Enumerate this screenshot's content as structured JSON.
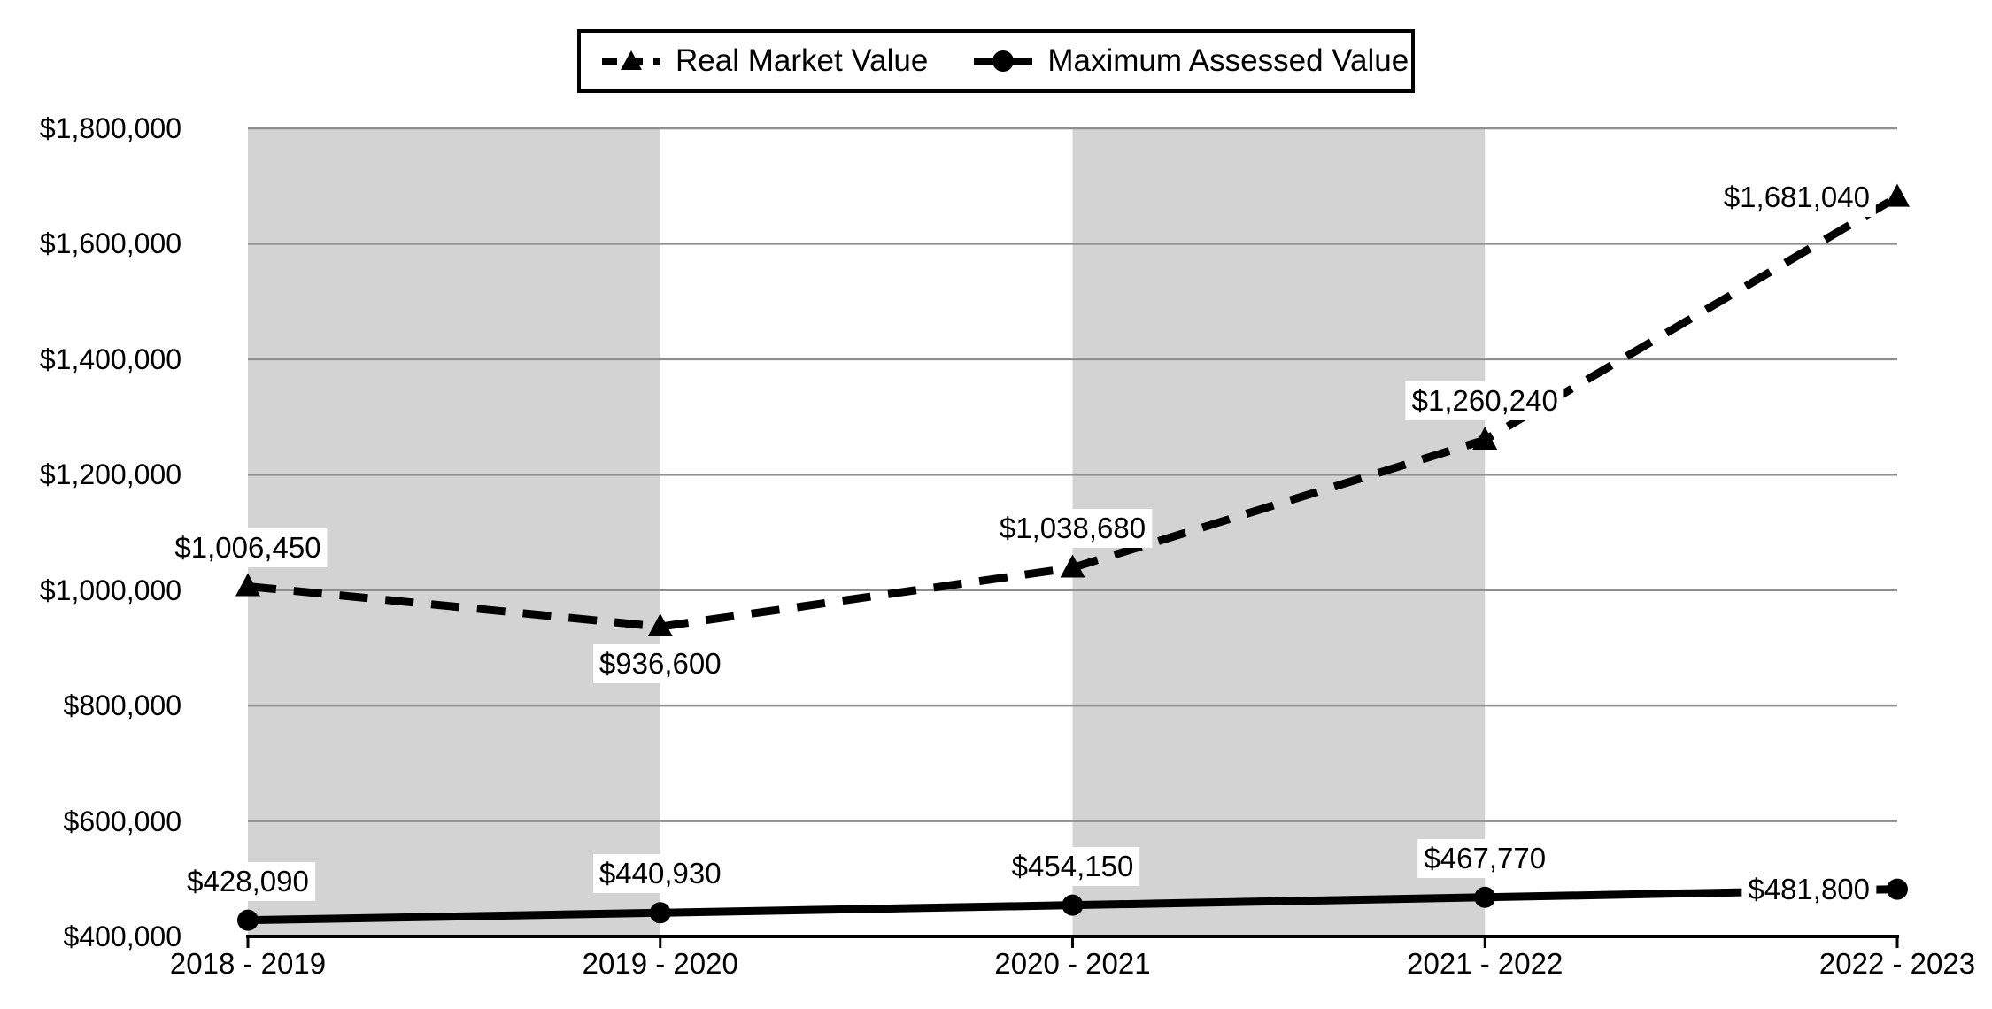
{
  "chart_data": {
    "type": "line",
    "categories": [
      "2018 - 2019",
      "2019 - 2020",
      "2020 - 2021",
      "2021 - 2022",
      "2022 - 2023"
    ],
    "series": [
      {
        "name": "Real Market Value",
        "style": "dashed",
        "marker": "triangle",
        "values": [
          1006450,
          936600,
          1038680,
          1260240,
          1681040
        ],
        "labels": [
          "$1,006,450",
          "$936,600",
          "$1,038,680",
          "$1,260,240",
          "$1,681,040"
        ],
        "label_positions": [
          "above",
          "below",
          "above",
          "above",
          "left"
        ]
      },
      {
        "name": "Maximum Assessed Value",
        "style": "solid",
        "marker": "circle",
        "values": [
          428090,
          440930,
          454150,
          467770,
          481800
        ],
        "labels": [
          "$428,090",
          "$440,930",
          "$454,150",
          "$467,770",
          "$481,800"
        ],
        "label_positions": [
          "above",
          "above",
          "above",
          "above",
          "left"
        ]
      }
    ],
    "ylim": [
      400000,
      1800000
    ],
    "ytick_step": 200000,
    "ytick_labels": [
      "$400,000",
      "$600,000",
      "$800,000",
      "$1,000,000",
      "$1,200,000",
      "$1,400,000",
      "$1,600,000",
      "$1,800,000"
    ],
    "grid": true,
    "legend_position": "top-center",
    "band_intervals": [
      [
        0,
        1
      ],
      [
        2,
        3
      ]
    ],
    "colors": {
      "series": "#000000",
      "gridline": "#8e8e8e",
      "band": "#d3d3d3",
      "background": "#ffffff",
      "label_background": "#ffffff"
    }
  }
}
